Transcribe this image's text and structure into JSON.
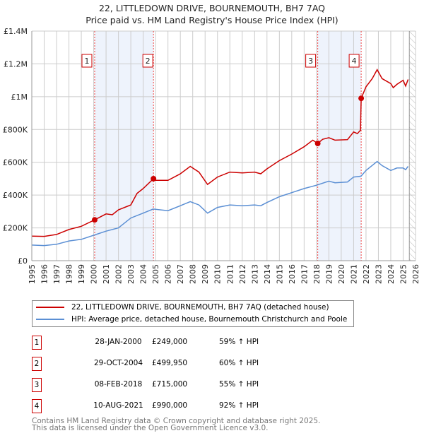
{
  "chart_data": {
    "type": "line",
    "title": "22, LITTLEDOWN DRIVE, BOURNEMOUTH, BH7 7AQ",
    "subtitle": "Price paid vs. HM Land Registry's House Price Index (HPI)",
    "xlim": [
      1995,
      2026
    ],
    "ylim": [
      0,
      1400000
    ],
    "x_ticks": [
      "1995",
      "1996",
      "1997",
      "1998",
      "1999",
      "2000",
      "2001",
      "2002",
      "2003",
      "2004",
      "2005",
      "2006",
      "2007",
      "2008",
      "2009",
      "2010",
      "2011",
      "2012",
      "2013",
      "2014",
      "2015",
      "2016",
      "2017",
      "2018",
      "2019",
      "2020",
      "2021",
      "2022",
      "2023",
      "2024",
      "2025",
      "2026"
    ],
    "y_ticks": [
      {
        "v": 0,
        "label": "£0"
      },
      {
        "v": 200000,
        "label": "£200K"
      },
      {
        "v": 400000,
        "label": "£400K"
      },
      {
        "v": 600000,
        "label": "£600K"
      },
      {
        "v": 800000,
        "label": "£800K"
      },
      {
        "v": 1000000,
        "label": "£1M"
      },
      {
        "v": 1200000,
        "label": "£1.2M"
      },
      {
        "v": 1400000,
        "label": "£1.4M"
      }
    ],
    "grid": true,
    "forecast_hatch_from": 2025.5,
    "series": [
      {
        "name": "22, LITTLEDOWN DRIVE, BOURNEMOUTH, BH7 7AQ (detached house)",
        "color": "#cc0000",
        "x": [
          1995,
          1996,
          1997,
          1998,
          1999,
          2000.08,
          2001,
          2001.5,
          2002,
          2003,
          2003.5,
          2004,
          2004.83,
          2005,
          2006,
          2007,
          2007.8,
          2008.5,
          2009.2,
          2010,
          2011,
          2012,
          2013,
          2013.5,
          2014,
          2015,
          2016,
          2017,
          2017.7,
          2018.1,
          2018.5,
          2019,
          2019.5,
          2020.5,
          2021,
          2021.3,
          2021.55,
          2021.61,
          2022,
          2022.5,
          2022.9,
          2023.3,
          2024,
          2024.2,
          2024.5,
          2025,
          2025.2,
          2025.4
        ],
        "y": [
          150000,
          148000,
          160000,
          190000,
          210000,
          249000,
          285000,
          280000,
          310000,
          340000,
          410000,
          440000,
          499950,
          490000,
          490000,
          530000,
          575000,
          540000,
          465000,
          510000,
          540000,
          535000,
          540000,
          530000,
          560000,
          610000,
          650000,
          695000,
          735000,
          715000,
          740000,
          750000,
          735000,
          738000,
          785000,
          775000,
          795000,
          990000,
          1060000,
          1110000,
          1165000,
          1110000,
          1080000,
          1055000,
          1075000,
          1100000,
          1065000,
          1105000
        ]
      },
      {
        "name": "HPI: Average price, detached house, Bournemouth Christchurch and Poole",
        "color": "#5b8fd4",
        "x": [
          1995,
          1996,
          1997,
          1998,
          1999,
          2000,
          2001,
          2002,
          2003,
          2004,
          2004.8,
          2006,
          2007,
          2007.8,
          2008.5,
          2009.2,
          2010,
          2011,
          2012,
          2013,
          2013.5,
          2014,
          2015,
          2016,
          2017,
          2018,
          2019,
          2019.5,
          2020.5,
          2021,
          2021.6,
          2022,
          2022.9,
          2023.3,
          2024,
          2024.5,
          2025,
          2025.2,
          2025.4
        ],
        "y": [
          95000,
          92000,
          100000,
          120000,
          130000,
          155000,
          180000,
          200000,
          260000,
          290000,
          315000,
          305000,
          335000,
          360000,
          340000,
          290000,
          325000,
          340000,
          335000,
          340000,
          335000,
          355000,
          390000,
          415000,
          440000,
          460000,
          485000,
          475000,
          480000,
          510000,
          515000,
          550000,
          605000,
          580000,
          550000,
          565000,
          565000,
          555000,
          575000
        ]
      }
    ],
    "sales": [
      {
        "n": "1",
        "x": 2000.08,
        "y": 249000,
        "date": "28-JAN-2000",
        "price": "£249,000",
        "pct": "59% ↑ HPI"
      },
      {
        "n": "2",
        "x": 2004.83,
        "y": 499950,
        "date": "29-OCT-2004",
        "price": "£499,950",
        "pct": "60% ↑ HPI"
      },
      {
        "n": "3",
        "x": 2018.1,
        "y": 715000,
        "date": "08-FEB-2018",
        "price": "£715,000",
        "pct": "55% ↑ HPI"
      },
      {
        "n": "4",
        "x": 2021.61,
        "y": 990000,
        "date": "10-AUG-2021",
        "price": "£990,000",
        "pct": "92% ↑ HPI"
      }
    ],
    "shaded_spans": [
      [
        2000.08,
        2004.83
      ],
      [
        2018.1,
        2021.61
      ]
    ]
  },
  "legend": {
    "red": "22, LITTLEDOWN DRIVE, BOURNEMOUTH, BH7 7AQ (detached house)",
    "blue": "HPI: Average price, detached house, Bournemouth Christchurch and Poole"
  },
  "footer": {
    "line1": "Contains HM Land Registry data © Crown copyright and database right 2025.",
    "line2": "This data is licensed under the Open Government Licence v3.0."
  }
}
